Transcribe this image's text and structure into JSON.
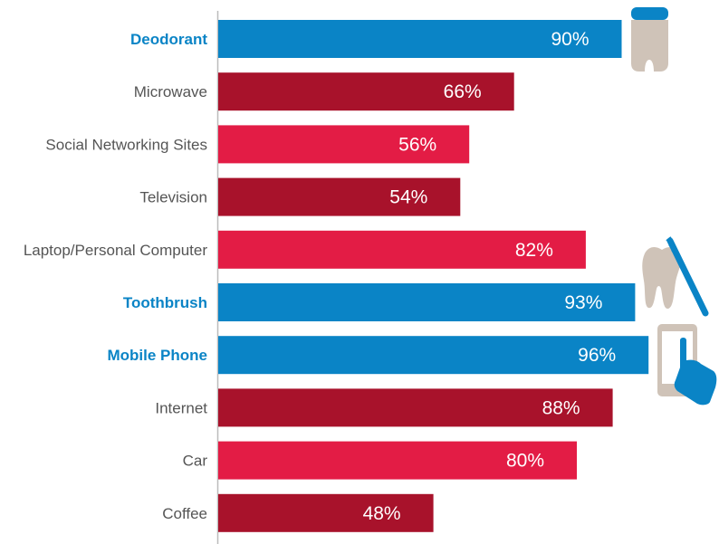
{
  "chart_data": {
    "type": "bar",
    "orientation": "horizontal",
    "categories": [
      "Deodorant",
      "Microwave",
      "Social Networking Sites",
      "Television",
      "Laptop/Personal Computer",
      "Toothbrush",
      "Mobile Phone",
      "Internet",
      "Car",
      "Coffee"
    ],
    "values": [
      90,
      66,
      56,
      54,
      82,
      93,
      96,
      88,
      80,
      48
    ],
    "value_labels": [
      "90%",
      "66%",
      "56%",
      "54%",
      "82%",
      "93%",
      "96%",
      "88%",
      "80%",
      "48%"
    ],
    "highlighted": [
      true,
      false,
      false,
      false,
      false,
      true,
      true,
      false,
      false,
      false
    ],
    "bar_colors": [
      "#0a84c6",
      "#a8122b",
      "#e31c45",
      "#a8122b",
      "#e31c45",
      "#0a84c6",
      "#0a84c6",
      "#a8122b",
      "#e31c45",
      "#a8122b"
    ],
    "xlim": [
      0,
      100
    ],
    "title": "",
    "xlabel": "",
    "ylabel": "",
    "grid": false,
    "legend": "none"
  },
  "colors": {
    "highlight_blue": "#0a84c6",
    "dark_red": "#a8122b",
    "bright_red": "#e31c45",
    "label_gray": "#555555",
    "icon_gray": "#cfc3b8",
    "axis_gray": "#bbbbbb"
  },
  "icons": {
    "deodorant": "deodorant-icon",
    "toothbrush": "toothbrush-icon",
    "mobile_phone": "mobile-phone-icon"
  }
}
